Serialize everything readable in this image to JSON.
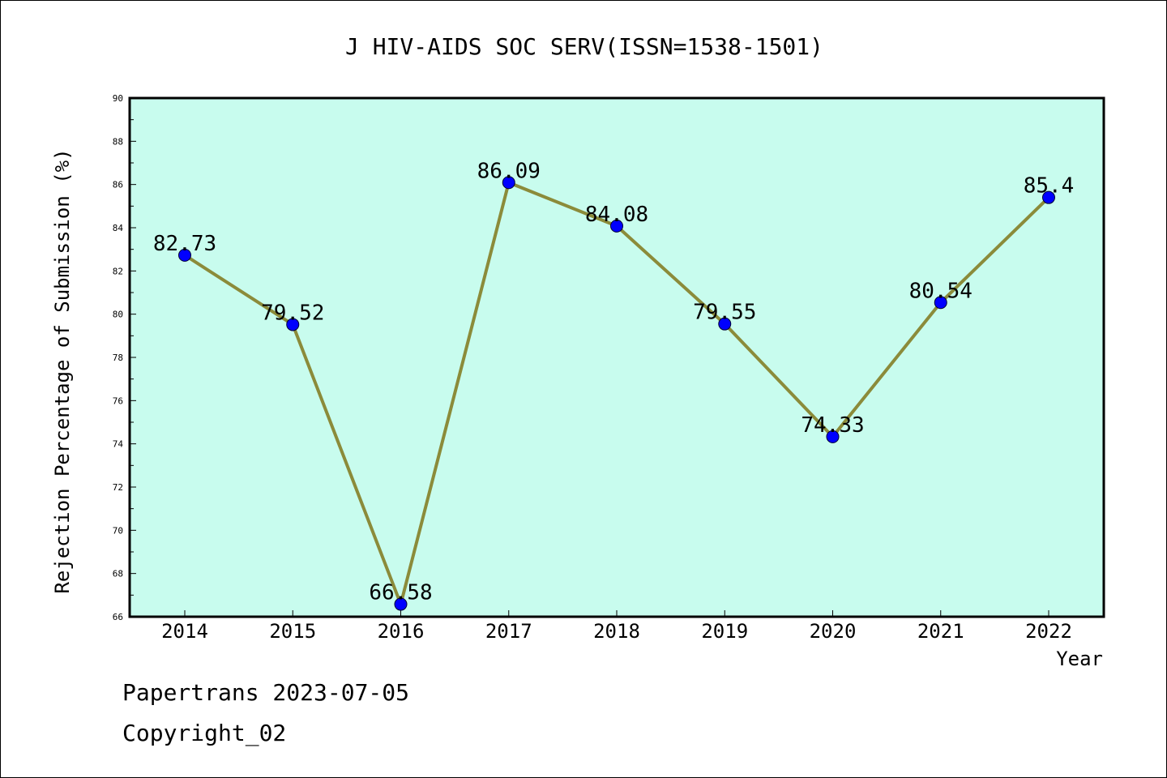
{
  "chart_data": {
    "type": "line",
    "title": "J HIV-AIDS SOC SERV(ISSN=1538-1501)",
    "xlabel": "Year",
    "ylabel": "Rejection Percentage of Submission (%)",
    "x": [
      "2014",
      "2015",
      "2016",
      "2017",
      "2018",
      "2019",
      "2020",
      "2021",
      "2022"
    ],
    "values": [
      82.73,
      79.52,
      66.58,
      86.09,
      84.08,
      79.55,
      74.33,
      80.54,
      85.4
    ],
    "data_labels": [
      "82.73",
      "79.52",
      "66.58",
      "86.09",
      "84.08",
      "79.55",
      "74.33",
      "80.54",
      "85.4"
    ],
    "ylim": [
      66,
      90
    ],
    "yticks": [
      "66",
      "68",
      "70",
      "72",
      "74",
      "76",
      "78",
      "80",
      "82",
      "84",
      "86",
      "88",
      "90"
    ],
    "grid": false,
    "legend": "none",
    "colors": {
      "plot_background": "#c8fcee",
      "line": "#8b8b3a",
      "marker": "#0000ff"
    }
  },
  "footer": {
    "line1": "Papertrans 2023-07-05",
    "line2": "Copyright_02"
  }
}
